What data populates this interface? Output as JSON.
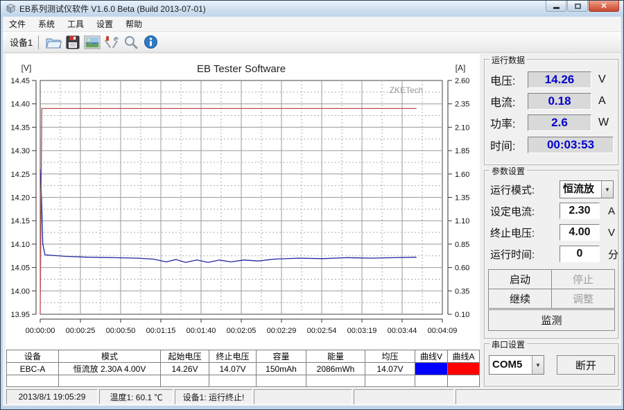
{
  "window": {
    "title": "EB系列测试仪软件 V1.6.0 Beta (Build 2013-07-01)"
  },
  "menu": {
    "items": [
      "文件",
      "系统",
      "工具",
      "设置",
      "帮助"
    ]
  },
  "toolbar": {
    "device_tab": "设备1"
  },
  "chart_data": {
    "type": "line",
    "title": "EB Tester Software",
    "watermark": "ZKETech",
    "left_axis": {
      "label": "[V]",
      "min": 13.95,
      "max": 14.45,
      "ticks": [
        "14.45",
        "14.40",
        "14.35",
        "14.30",
        "14.25",
        "14.20",
        "14.15",
        "14.10",
        "14.05",
        "14.00",
        "13.95"
      ]
    },
    "right_axis": {
      "label": "[A]",
      "min": 0.1,
      "max": 2.6,
      "ticks": [
        "2.60",
        "2.35",
        "2.10",
        "1.85",
        "1.60",
        "1.35",
        "1.10",
        "0.85",
        "0.60",
        "0.35",
        "0.10"
      ]
    },
    "x_axis": {
      "min_s": 0,
      "max_s": 249,
      "ticks": [
        "00:00:00",
        "00:00:25",
        "00:00:50",
        "00:01:15",
        "00:01:40",
        "00:02:05",
        "00:02:29",
        "00:02:54",
        "00:03:19",
        "00:03:44",
        "00:04:09"
      ]
    },
    "grid": true,
    "series": [
      {
        "name": "voltage",
        "axis": "left",
        "color": "#22229e",
        "points": [
          [
            0,
            14.26
          ],
          [
            0.8,
            14.2
          ],
          [
            1.6,
            14.1
          ],
          [
            3,
            14.077
          ],
          [
            15,
            14.074
          ],
          [
            30,
            14.072
          ],
          [
            45,
            14.071
          ],
          [
            60,
            14.07
          ],
          [
            70,
            14.068
          ],
          [
            78,
            14.062
          ],
          [
            84,
            14.067
          ],
          [
            90,
            14.061
          ],
          [
            97,
            14.066
          ],
          [
            104,
            14.061
          ],
          [
            111,
            14.066
          ],
          [
            118,
            14.062
          ],
          [
            126,
            14.066
          ],
          [
            135,
            14.064
          ],
          [
            145,
            14.068
          ],
          [
            160,
            14.07
          ],
          [
            175,
            14.069
          ],
          [
            190,
            14.071
          ],
          [
            205,
            14.07
          ],
          [
            220,
            14.071
          ],
          [
            233,
            14.072
          ]
        ]
      },
      {
        "name": "current",
        "axis": "right",
        "color": "#c24a4a",
        "points": [
          [
            0,
            0.1
          ],
          [
            1,
            2.3
          ],
          [
            60,
            2.3
          ],
          [
            120,
            2.3
          ],
          [
            180,
            2.3
          ],
          [
            233,
            2.3
          ]
        ]
      }
    ]
  },
  "run_data": {
    "title": "运行数据",
    "voltage": {
      "label": "电压:",
      "value": "14.26",
      "unit": "V"
    },
    "current": {
      "label": "电流:",
      "value": "0.18",
      "unit": "A"
    },
    "power": {
      "label": "功率:",
      "value": "2.6",
      "unit": "W"
    },
    "time": {
      "label": "时间:",
      "value": "00:03:53"
    }
  },
  "params": {
    "title": "参数设置",
    "mode": {
      "label": "运行模式:",
      "value": "恒流放"
    },
    "current": {
      "label": "设定电流:",
      "value": "2.30",
      "unit": "A"
    },
    "cutoff": {
      "label": "终止电压:",
      "value": "4.00",
      "unit": "V"
    },
    "time": {
      "label": "运行时间:",
      "value": "0",
      "unit": "分"
    },
    "buttons": {
      "start": "启动",
      "stop": "停止",
      "resume": "继续",
      "adjust": "调整",
      "monitor": "监测"
    }
  },
  "serial": {
    "title": "串口设置",
    "port": "COM5",
    "disconnect": "断开"
  },
  "results_table": {
    "headers": [
      "设备",
      "模式",
      "起始电压",
      "终止电压",
      "容量",
      "能量",
      "均压",
      "曲线V",
      "曲线A"
    ],
    "rows": [
      {
        "device": "EBC-A",
        "mode": "恒流放  2.30A  4.00V",
        "start_v": "14.26V",
        "end_v": "14.07V",
        "capacity": "150mAh",
        "energy": "2086mWh",
        "avg_v": "14.07V"
      }
    ],
    "curve_v_color": "#0000ff",
    "curve_a_color": "#ff0000"
  },
  "statusbar": {
    "datetime": "2013/8/1 19:05:29",
    "temperature": "温度1: 60.1 ℃",
    "device_status": "设备1: 运行终止!"
  }
}
